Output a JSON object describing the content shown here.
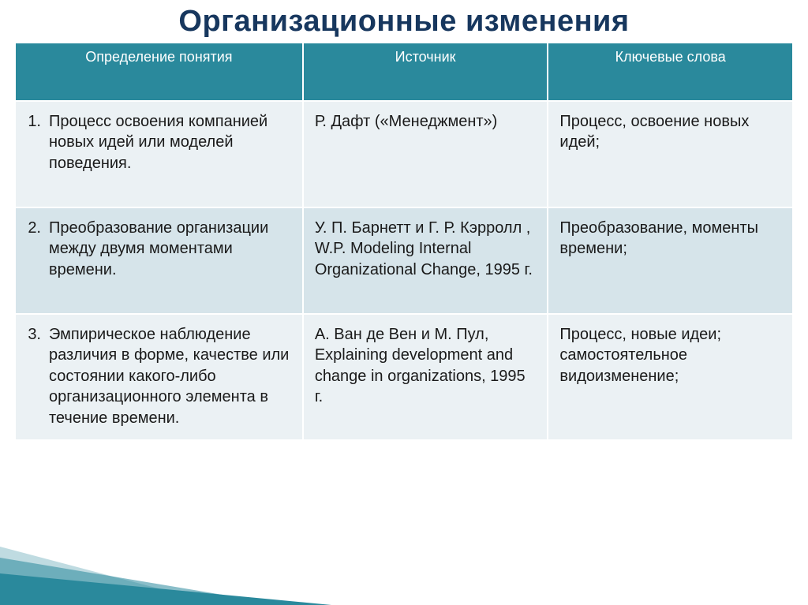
{
  "slide": {
    "title": "Организационные изменения",
    "title_color": "#17375e",
    "title_fontsize": 38,
    "background_color": "#ffffff"
  },
  "table": {
    "header_bg": "#2a899c",
    "header_text_color": "#ffffff",
    "header_fontsize": 18,
    "cell_fontsize": 20,
    "text_color": "#1a1a1a",
    "row_colors": [
      "#ebf1f4",
      "#d6e4ea",
      "#ebf1f4"
    ],
    "border_color": "#ffffff",
    "col_widths_pct": [
      37,
      31.5,
      31.5
    ],
    "columns": [
      "Определение понятия",
      "Источник",
      "Ключевые слова"
    ],
    "rows": [
      {
        "num": "1.",
        "definition": "Процесс освоения компанией новых идей или моделей поведения.",
        "source": "Р. Дафт («Менеджмент»)",
        "keywords": "Процесс, освоение новых идей;"
      },
      {
        "num": "2.",
        "definition": "Преобразование организации между двумя моментами времени.",
        "source": "У. П. Барнетт и  Г. Р. Кэрролл , W.P. Modeling Internal Organizational Change, 1995 г.",
        "keywords": "Преобразование, моменты времени;"
      },
      {
        "num": "3.",
        "definition": "Эмпирическое наблюдение различия в форме, качестве или состоянии какого-либо организационного элемента в течение времени.",
        "source": "А. Ван де Вен и М. Пул, Explaining development and change in organizations, 1995 г.",
        "keywords": "Процесс, новые идеи; самостоятельное видоизменение;"
      }
    ]
  },
  "corner_accent": {
    "color": "#2a899c"
  }
}
